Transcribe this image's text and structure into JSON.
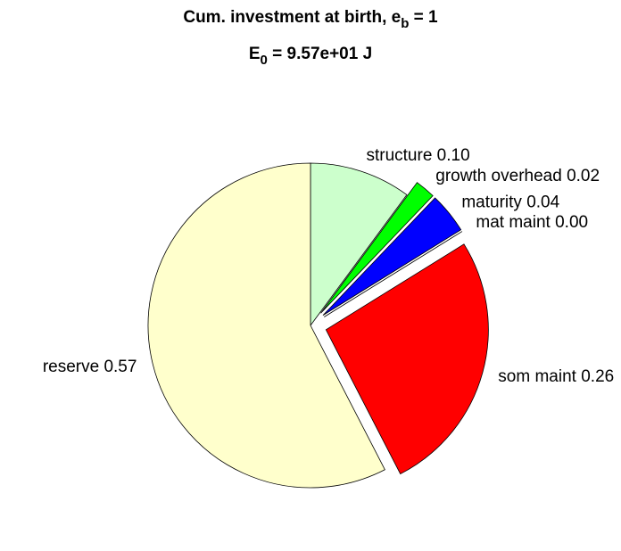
{
  "chart_data": {
    "type": "pie",
    "title": [
      "Cum. investment at birth, e",
      "b",
      " = 1"
    ],
    "subtitle": [
      "E",
      "0",
      " = 9.57e+01 J"
    ],
    "categories": [
      "structure",
      "growth overhead",
      "maturity",
      "mat maint",
      "som maint",
      "reserve"
    ],
    "values": [
      0.1,
      0.02,
      0.04,
      0.0,
      0.26,
      0.57
    ],
    "value_labels": [
      "0.10",
      "0.02",
      "0.04",
      "0.00",
      "0.26",
      "0.57"
    ],
    "colors": [
      "#ccffcc",
      "#00ff00",
      "#0000ff",
      "#ffffff",
      "#ff0000",
      "#ffffcc"
    ],
    "explode": [
      false,
      true,
      true,
      true,
      true,
      false
    ]
  }
}
